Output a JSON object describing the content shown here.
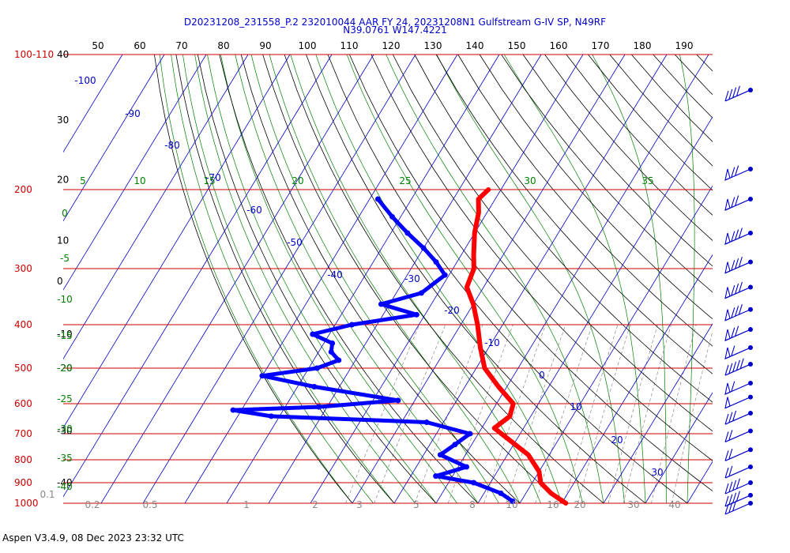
{
  "chart_data": {
    "type": "line",
    "title": "D20231208_231558_P.2 232010044 AAR FY 24, 20231208N1 Gulfstream G-IV SP, N49RF",
    "subtitle": "N39.0761 W147.4221",
    "footer": "Aspen V3.4.9, 08 Dec 2023  23:32 UTC",
    "colors": {
      "temperature": "#ff0000",
      "dewpoint": "#0000ff",
      "isobar": "#cc0000",
      "title": "#0000cc",
      "isotherm": "#0000cc",
      "mixing_ratio": "#008000",
      "wind_barb": "#0000cc"
    },
    "pressure_labels": [
      "100-110",
      "200",
      "300",
      "400",
      "500",
      "600",
      "700",
      "800",
      "900",
      "1000"
    ],
    "pressure_levels_hpa": [
      100,
      200,
      300,
      400,
      500,
      600,
      700,
      800,
      900,
      1000
    ],
    "top_temperature_scale": [
      "50",
      "60",
      "70",
      "80",
      "90",
      "100",
      "110",
      "120",
      "130",
      "140",
      "150",
      "160",
      "170",
      "180",
      "190"
    ],
    "left_height_labels": [
      "40",
      "30",
      "20",
      "10",
      "0",
      "-10",
      "-20",
      "-30",
      "-40"
    ],
    "isotherm_labels": [
      "-100",
      "-90",
      "-80",
      "-70",
      "-60",
      "-50",
      "-40",
      "-30",
      "-20",
      "-10",
      "0",
      "10",
      "20",
      "30"
    ],
    "mixing_ratio_labels": [
      "5",
      "10",
      "15",
      "20",
      "25",
      "30",
      "35"
    ],
    "left_green_labels": [
      "0",
      "-5",
      "-10",
      "-15",
      "-20",
      "-25",
      "-30",
      "-35",
      "-40"
    ],
    "bottom_scale_labels": [
      "0.1",
      "0.2",
      "0.5",
      "1",
      "2",
      "3",
      "5",
      "8",
      "10",
      "16",
      "20",
      "30",
      "40"
    ],
    "temperature_profile": [
      {
        "p": 200,
        "t": -53
      },
      {
        "p": 210,
        "t": -54
      },
      {
        "p": 225,
        "t": -52
      },
      {
        "p": 250,
        "t": -50
      },
      {
        "p": 280,
        "t": -47
      },
      {
        "p": 300,
        "t": -45
      },
      {
        "p": 330,
        "t": -44
      },
      {
        "p": 360,
        "t": -40
      },
      {
        "p": 400,
        "t": -36
      },
      {
        "p": 450,
        "t": -32
      },
      {
        "p": 500,
        "t": -28
      },
      {
        "p": 550,
        "t": -22
      },
      {
        "p": 600,
        "t": -16
      },
      {
        "p": 640,
        "t": -15
      },
      {
        "p": 680,
        "t": -17
      },
      {
        "p": 720,
        "t": -12
      },
      {
        "p": 780,
        "t": -5
      },
      {
        "p": 850,
        "t": 0
      },
      {
        "p": 900,
        "t": 2
      },
      {
        "p": 950,
        "t": 6
      },
      {
        "p": 1000,
        "t": 11
      }
    ],
    "dewpoint_profile": [
      {
        "p": 210,
        "td": -78
      },
      {
        "p": 230,
        "td": -72
      },
      {
        "p": 250,
        "td": -66
      },
      {
        "p": 270,
        "td": -60
      },
      {
        "p": 290,
        "td": -55
      },
      {
        "p": 310,
        "td": -51
      },
      {
        "p": 340,
        "td": -54
      },
      {
        "p": 360,
        "td": -62
      },
      {
        "p": 380,
        "td": -52
      },
      {
        "p": 400,
        "td": -66
      },
      {
        "p": 420,
        "td": -74
      },
      {
        "p": 440,
        "td": -68
      },
      {
        "p": 460,
        "td": -67
      },
      {
        "p": 480,
        "td": -64
      },
      {
        "p": 500,
        "td": -68
      },
      {
        "p": 520,
        "td": -80
      },
      {
        "p": 550,
        "td": -66
      },
      {
        "p": 590,
        "td": -44
      },
      {
        "p": 610,
        "td": -62
      },
      {
        "p": 620,
        "td": -82
      },
      {
        "p": 640,
        "td": -72
      },
      {
        "p": 660,
        "td": -34
      },
      {
        "p": 700,
        "td": -22
      },
      {
        "p": 740,
        "td": -24
      },
      {
        "p": 780,
        "td": -26
      },
      {
        "p": 830,
        "td": -18
      },
      {
        "p": 870,
        "td": -24
      },
      {
        "p": 900,
        "td": -14
      },
      {
        "p": 950,
        "td": -6
      },
      {
        "p": 990,
        "td": -2
      }
    ],
    "wind_barbs": [
      {
        "p": 120,
        "flags": 0,
        "barbs": 4
      },
      {
        "p": 180,
        "flags": 1,
        "barbs": 2
      },
      {
        "p": 210,
        "flags": 1,
        "barbs": 2
      },
      {
        "p": 250,
        "flags": 1,
        "barbs": 3
      },
      {
        "p": 290,
        "flags": 1,
        "barbs": 3
      },
      {
        "p": 330,
        "flags": 1,
        "barbs": 3
      },
      {
        "p": 370,
        "flags": 1,
        "barbs": 3
      },
      {
        "p": 410,
        "flags": 1,
        "barbs": 2
      },
      {
        "p": 450,
        "flags": 1,
        "barbs": 1
      },
      {
        "p": 490,
        "flags": 0,
        "barbs": 5
      },
      {
        "p": 540,
        "flags": 1,
        "barbs": 1
      },
      {
        "p": 580,
        "flags": 1,
        "barbs": 0
      },
      {
        "p": 630,
        "flags": 0,
        "barbs": 3
      },
      {
        "p": 690,
        "flags": 0,
        "barbs": 2
      },
      {
        "p": 760,
        "flags": 0,
        "barbs": 2
      },
      {
        "p": 830,
        "flags": 0,
        "barbs": 2
      },
      {
        "p": 900,
        "flags": 0,
        "barbs": 4
      },
      {
        "p": 960,
        "flags": 0,
        "barbs": 4
      },
      {
        "p": 1000,
        "flags": 0,
        "barbs": 3
      }
    ]
  }
}
